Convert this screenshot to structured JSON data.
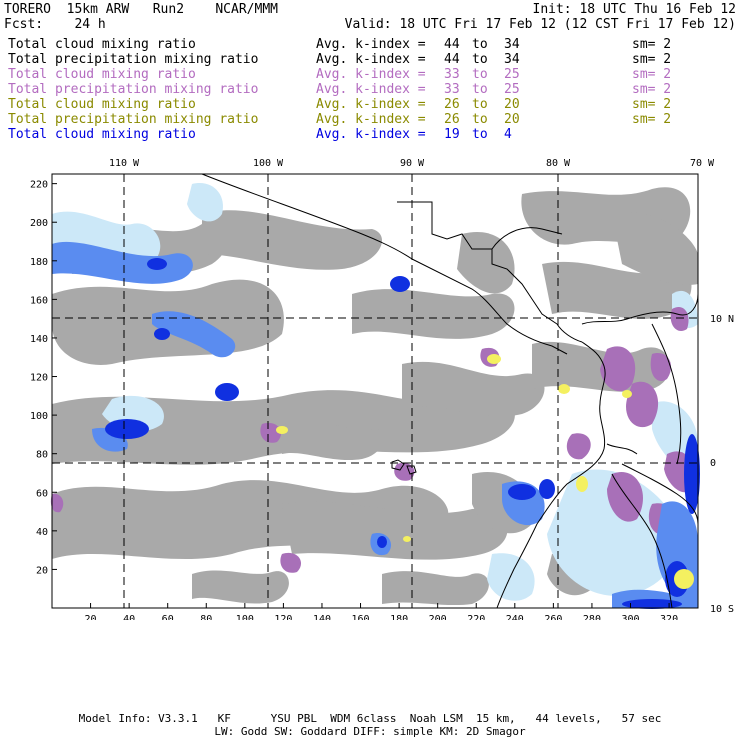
{
  "header": {
    "model": "TORERO",
    "resolution": "15km ARW",
    "run": "Run2",
    "org": "NCAR/MMM",
    "init": "Init: 18 UTC Thu 16 Feb 12",
    "fcst_label": "Fcst:",
    "fcst_value": "24 h",
    "valid": "Valid: 18 UTC Fri 17 Feb 12 (12 CST Fri 17 Feb 12)"
  },
  "legend": [
    {
      "field": "Total cloud mixing ratio",
      "k_label": "Avg. k-index =",
      "k_from": "44",
      "to": "to",
      "k_to": "34",
      "sm": "sm= 2",
      "color": "#000000"
    },
    {
      "field": "Total precipitation mixing ratio",
      "k_label": "Avg. k-index =",
      "k_from": "44",
      "to": "to",
      "k_to": "34",
      "sm": "sm= 2",
      "color": "#000000"
    },
    {
      "field": "Total cloud mixing ratio",
      "k_label": "Avg. k-index =",
      "k_from": "33",
      "to": "to",
      "k_to": "25",
      "sm": "sm= 2",
      "color": "#b36cc0"
    },
    {
      "field": "Total precipitation mixing ratio",
      "k_label": "Avg. k-index =",
      "k_from": "33",
      "to": "to",
      "k_to": "25",
      "sm": "sm= 2",
      "color": "#b36cc0"
    },
    {
      "field": "Total cloud mixing ratio",
      "k_label": "Avg. k-index =",
      "k_from": "26",
      "to": "to",
      "k_to": "20",
      "sm": "sm= 2",
      "color": "#8a8a00"
    },
    {
      "field": "Total precipitation mixing ratio",
      "k_label": "Avg. k-index =",
      "k_from": "26",
      "to": "to",
      "k_to": "20",
      "sm": "sm= 2",
      "color": "#8a8a00"
    },
    {
      "field": "Total cloud mixing ratio",
      "k_label": "Avg. k-index =",
      "k_from": "19",
      "to": "to",
      "k_to": "4",
      "sm": "",
      "color": "#0000e0"
    }
  ],
  "map": {
    "lon_labels": [
      "110 W",
      "100 W",
      "90 W",
      "80 W",
      "70 W"
    ],
    "lat_labels": [
      "10 N",
      "0",
      "10 S"
    ],
    "x_ticks": [
      "20",
      "40",
      "60",
      "80",
      "100",
      "120",
      "140",
      "160",
      "180",
      "200",
      "220",
      "240",
      "260",
      "280",
      "300",
      "320"
    ],
    "y_ticks": [
      "20",
      "40",
      "60",
      "80",
      "100",
      "120",
      "140",
      "160",
      "180",
      "200",
      "220"
    ],
    "x_range": [
      0,
      335
    ],
    "y_range": [
      0,
      225
    ],
    "colors": {
      "gray": "#a9a9a9",
      "light_blue": "#cce8f8",
      "mid_blue": "#5a8cf0",
      "blue": "#1030e0",
      "purple": "#a870b8",
      "yellow": "#f4f060",
      "coast": "#000000"
    }
  },
  "footer": {
    "line1": "Model Info: V3.3.1   KF      YSU PBL  WDM 6class  Noah LSM  15 km,   44 levels,   57 sec",
    "line2": "LW: Godd SW: Goddard DIFF: simple KM: 2D Smagor"
  }
}
